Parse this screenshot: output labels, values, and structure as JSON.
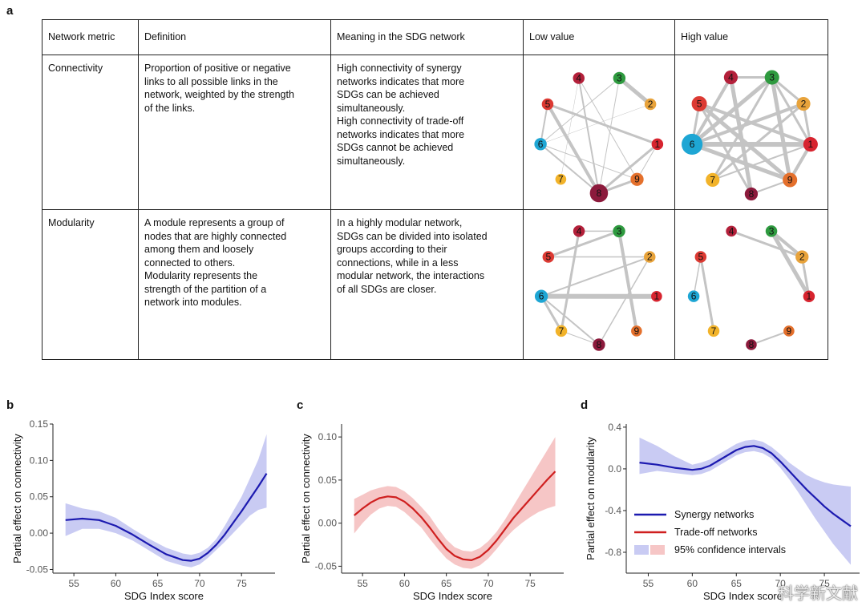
{
  "panel_a": {
    "letter": "a",
    "headers": [
      "Network metric",
      "Definition",
      "Meaning in the SDG network",
      "Low value",
      "High value"
    ],
    "rows": [
      {
        "metric": "Connectivity",
        "definition": "Proportion of positive or negative\nlinks to all possible links in the\nnetwork, weighted by the strength\nof the links.",
        "meaning": "High connectivity of synergy\nnetworks indicates that more\nSDGs can be achieved\nsimultaneously.\nHigh connectivity of trade-off\nnetworks indicates that more\nSDGs cannot be achieved\nsimultaneously."
      },
      {
        "metric": "Modularity",
        "definition": "A module represents a group of\nnodes that are highly connected\namong them and loosely\nconnected to others.\nModularity represents the\nstrength of the partition of a\nnetwork into modules.",
        "meaning": "In a highly modular network,\nSDGs can be divided into isolated\ngroups according to their\nconnections, while in a less\nmodular network, the interactions\nof all SDGs are closer."
      }
    ],
    "node_colors": {
      "1": "#d7242f",
      "2": "#e8a33b",
      "3": "#2e9a3f",
      "4": "#b3203a",
      "5": "#dc3a33",
      "6": "#1ea6d4",
      "7": "#f2b32a",
      "8": "#8c1a3c",
      "9": "#e4702c"
    },
    "networks": [
      {
        "id": "connectivity-low",
        "nodes": [
          {
            "id": "4",
            "size": 0.25
          },
          {
            "id": "3",
            "size": 0.3
          },
          {
            "id": "2",
            "size": 0.25
          },
          {
            "id": "5",
            "size": 0.25
          },
          {
            "id": "1",
            "size": 0.25
          },
          {
            "id": "6",
            "size": 0.3
          },
          {
            "id": "9",
            "size": 0.35
          },
          {
            "id": "7",
            "size": 0.2
          },
          {
            "id": "8",
            "size": 0.7
          }
        ],
        "edges": [
          {
            "a": "3",
            "b": "2",
            "w": 5
          },
          {
            "a": "5",
            "b": "1",
            "w": 3
          },
          {
            "a": "5",
            "b": "8",
            "w": 4
          },
          {
            "a": "1",
            "b": "8",
            "w": 3
          },
          {
            "a": "9",
            "b": "8",
            "w": 3
          },
          {
            "a": "9",
            "b": "1",
            "w": 1
          },
          {
            "a": "6",
            "b": "8",
            "w": 2
          },
          {
            "a": "6",
            "b": "5",
            "w": 2
          },
          {
            "a": "6",
            "b": "9",
            "w": 1
          },
          {
            "a": "4",
            "b": "8",
            "w": 2
          },
          {
            "a": "3",
            "b": "8",
            "w": 1
          },
          {
            "a": "6",
            "b": "3",
            "w": 1
          },
          {
            "a": "4",
            "b": "9",
            "w": 1
          },
          {
            "a": "2",
            "b": "6",
            "w": 0.5
          },
          {
            "a": "4",
            "b": "7",
            "w": 0.5
          }
        ]
      },
      {
        "id": "connectivity-high",
        "nodes": [
          {
            "id": "4",
            "size": 0.4
          },
          {
            "id": "3",
            "size": 0.45
          },
          {
            "id": "2",
            "size": 0.4
          },
          {
            "id": "5",
            "size": 0.5
          },
          {
            "id": "1",
            "size": 0.45
          },
          {
            "id": "6",
            "size": 0.9
          },
          {
            "id": "9",
            "size": 0.45
          },
          {
            "id": "7",
            "size": 0.4
          },
          {
            "id": "8",
            "size": 0.35
          }
        ],
        "edges": [
          {
            "a": "6",
            "b": "1",
            "w": 6
          },
          {
            "a": "6",
            "b": "3",
            "w": 5
          },
          {
            "a": "6",
            "b": "2",
            "w": 4
          },
          {
            "a": "6",
            "b": "9",
            "w": 5
          },
          {
            "a": "6",
            "b": "4",
            "w": 4
          },
          {
            "a": "6",
            "b": "5",
            "w": 3
          },
          {
            "a": "5",
            "b": "1",
            "w": 4
          },
          {
            "a": "5",
            "b": "9",
            "w": 5
          },
          {
            "a": "3",
            "b": "9",
            "w": 5
          },
          {
            "a": "3",
            "b": "7",
            "w": 3
          },
          {
            "a": "4",
            "b": "8",
            "w": 5
          },
          {
            "a": "2",
            "b": "7",
            "w": 3
          },
          {
            "a": "1",
            "b": "9",
            "w": 4
          },
          {
            "a": "3",
            "b": "1",
            "w": 3
          },
          {
            "a": "4",
            "b": "3",
            "w": 3
          },
          {
            "a": "2",
            "b": "1",
            "w": 3
          },
          {
            "a": "5",
            "b": "8",
            "w": 3
          },
          {
            "a": "7",
            "b": "1",
            "w": 2
          },
          {
            "a": "3",
            "b": "2",
            "w": 3
          },
          {
            "a": "8",
            "b": "9",
            "w": 2
          }
        ]
      },
      {
        "id": "modularity-low",
        "nodes": [
          {
            "id": "4",
            "size": 0.25
          },
          {
            "id": "3",
            "size": 0.3
          },
          {
            "id": "2",
            "size": 0.25
          },
          {
            "id": "5",
            "size": 0.25
          },
          {
            "id": "1",
            "size": 0.2
          },
          {
            "id": "6",
            "size": 0.35
          },
          {
            "id": "9",
            "size": 0.2
          },
          {
            "id": "7",
            "size": 0.25
          },
          {
            "id": "8",
            "size": 0.3
          }
        ],
        "edges": [
          {
            "a": "6",
            "b": "1",
            "w": 6
          },
          {
            "a": "3",
            "b": "9",
            "w": 4
          },
          {
            "a": "3",
            "b": "5",
            "w": 3
          },
          {
            "a": "4",
            "b": "7",
            "w": 3
          },
          {
            "a": "6",
            "b": "2",
            "w": 2
          },
          {
            "a": "6",
            "b": "7",
            "w": 3
          },
          {
            "a": "6",
            "b": "8",
            "w": 2
          },
          {
            "a": "2",
            "b": "8",
            "w": 1.5
          },
          {
            "a": "4",
            "b": "3",
            "w": 1.5
          },
          {
            "a": "5",
            "b": "2",
            "w": 1.5
          },
          {
            "a": "7",
            "b": "8",
            "w": 1
          }
        ]
      },
      {
        "id": "modularity-high",
        "nodes": [
          {
            "id": "4",
            "size": 0.2
          },
          {
            "id": "3",
            "size": 0.25
          },
          {
            "id": "2",
            "size": 0.35
          },
          {
            "id": "5",
            "size": 0.25
          },
          {
            "id": "1",
            "size": 0.25
          },
          {
            "id": "6",
            "size": 0.25
          },
          {
            "id": "9",
            "size": 0.2
          },
          {
            "id": "7",
            "size": 0.25
          },
          {
            "id": "8",
            "size": 0.2
          }
        ],
        "edges": [
          {
            "a": "3",
            "b": "1",
            "w": 5
          },
          {
            "a": "3",
            "b": "2",
            "w": 4
          },
          {
            "a": "4",
            "b": "2",
            "w": 3
          },
          {
            "a": "2",
            "b": "1",
            "w": 3
          },
          {
            "a": "5",
            "b": "7",
            "w": 3
          },
          {
            "a": "6",
            "b": "5",
            "w": 1.5
          },
          {
            "a": "8",
            "b": "9",
            "w": 2
          }
        ]
      }
    ]
  },
  "chart_data": [
    {
      "panel": "b",
      "type": "line",
      "ylabel": "Partial effect on connectivity",
      "xlabel": "SDG Index score",
      "xlim": [
        52.5,
        79
      ],
      "ylim": [
        -0.055,
        0.15
      ],
      "xticks": [
        55,
        60,
        65,
        70,
        75
      ],
      "yticks": [
        -0.05,
        0.0,
        0.05,
        0.1,
        0.15
      ],
      "ytick_labels": [
        "-0.05",
        "0.00",
        "0.05",
        "0.10",
        "0.15"
      ],
      "line_color": "#1c1ab0",
      "band_color": "#c9cbf3",
      "series": [
        {
          "x": [
            54,
            56,
            58,
            60,
            62,
            64,
            66,
            68,
            69,
            70,
            71,
            72,
            73,
            74,
            75,
            76,
            77,
            78
          ],
          "y": [
            0.018,
            0.02,
            0.018,
            0.01,
            -0.002,
            -0.016,
            -0.029,
            -0.037,
            -0.038,
            -0.035,
            -0.027,
            -0.016,
            -0.002,
            0.014,
            0.03,
            0.047,
            0.064,
            0.082
          ],
          "lower": [
            -0.004,
            0.006,
            0.006,
            0.0,
            -0.01,
            -0.024,
            -0.038,
            -0.045,
            -0.047,
            -0.043,
            -0.034,
            -0.023,
            -0.012,
            0.0,
            0.012,
            0.024,
            0.032,
            0.035
          ],
          "upper": [
            0.041,
            0.034,
            0.03,
            0.021,
            0.006,
            -0.008,
            -0.02,
            -0.028,
            -0.03,
            -0.027,
            -0.02,
            -0.008,
            0.01,
            0.03,
            0.05,
            0.075,
            0.101,
            0.136
          ]
        }
      ]
    },
    {
      "panel": "c",
      "type": "line",
      "ylabel": "Partial effect on connectivity",
      "xlabel": "SDG Index score",
      "xlim": [
        52.5,
        79
      ],
      "ylim": [
        -0.058,
        0.115
      ],
      "xticks": [
        55,
        60,
        65,
        70,
        75
      ],
      "yticks": [
        -0.05,
        0.0,
        0.05,
        0.1
      ],
      "ytick_labels": [
        "-0.05",
        "0.00",
        "0.05",
        "0.10"
      ],
      "line_color": "#cf1f1f",
      "band_color": "#f6c6c6",
      "series": [
        {
          "x": [
            54,
            55,
            56,
            57,
            58,
            59,
            60,
            61,
            62,
            63,
            64,
            65,
            66,
            67,
            68,
            69,
            70,
            71,
            72,
            73,
            74,
            75,
            76,
            77,
            78
          ],
          "y": [
            0.009,
            0.017,
            0.024,
            0.029,
            0.031,
            0.03,
            0.025,
            0.017,
            0.007,
            -0.005,
            -0.018,
            -0.03,
            -0.038,
            -0.042,
            -0.043,
            -0.039,
            -0.031,
            -0.02,
            -0.007,
            0.006,
            0.017,
            0.028,
            0.039,
            0.05,
            0.06
          ],
          "lower": [
            -0.012,
            0.0,
            0.01,
            0.017,
            0.02,
            0.019,
            0.013,
            0.004,
            -0.005,
            -0.018,
            -0.03,
            -0.041,
            -0.048,
            -0.052,
            -0.053,
            -0.049,
            -0.041,
            -0.03,
            -0.018,
            -0.008,
            0.0,
            0.007,
            0.013,
            0.017,
            0.02
          ],
          "upper": [
            0.028,
            0.033,
            0.038,
            0.041,
            0.043,
            0.042,
            0.037,
            0.029,
            0.019,
            0.008,
            -0.006,
            -0.019,
            -0.028,
            -0.032,
            -0.033,
            -0.029,
            -0.021,
            -0.01,
            0.004,
            0.02,
            0.036,
            0.052,
            0.068,
            0.084,
            0.1
          ]
        }
      ]
    },
    {
      "panel": "d",
      "type": "line",
      "ylabel": "Partial effect on modularity",
      "xlabel": "SDG Index score",
      "xlim": [
        52.5,
        79
      ],
      "ylim": [
        -1.0,
        0.43
      ],
      "xticks": [
        55,
        60,
        65,
        70,
        75
      ],
      "yticks": [
        -0.8,
        -0.4,
        0.0,
        0.4
      ],
      "ytick_labels": [
        "-0.8",
        "-0.4",
        "0.0",
        "0.4"
      ],
      "line_color": "#1c1ab0",
      "band_color": "#c9cbf3",
      "series": [
        {
          "x": [
            54,
            56,
            58,
            60,
            61,
            62,
            63,
            64,
            65,
            66,
            67,
            68,
            69,
            70,
            71,
            72,
            73,
            74,
            75,
            76,
            77,
            78
          ],
          "y": [
            0.06,
            0.04,
            0.01,
            -0.01,
            0.0,
            0.03,
            0.08,
            0.13,
            0.18,
            0.21,
            0.22,
            0.2,
            0.15,
            0.07,
            -0.02,
            -0.11,
            -0.2,
            -0.28,
            -0.36,
            -0.43,
            -0.49,
            -0.55
          ],
          "lower": [
            -0.05,
            -0.02,
            -0.04,
            -0.06,
            -0.05,
            -0.02,
            0.03,
            0.08,
            0.13,
            0.16,
            0.17,
            0.15,
            0.1,
            0.01,
            -0.1,
            -0.22,
            -0.35,
            -0.48,
            -0.6,
            -0.72,
            -0.82,
            -0.92
          ],
          "upper": [
            0.3,
            0.22,
            0.12,
            0.04,
            0.06,
            0.09,
            0.14,
            0.19,
            0.24,
            0.27,
            0.28,
            0.26,
            0.21,
            0.14,
            0.06,
            0.0,
            -0.06,
            -0.1,
            -0.13,
            -0.15,
            -0.16,
            -0.17
          ]
        }
      ],
      "legend": [
        {
          "label": "Synergy networks",
          "kind": "line",
          "color": "#1c1ab0"
        },
        {
          "label": "Trade-off networks",
          "kind": "line",
          "color": "#cf1f1f"
        },
        {
          "label": "95% confidence intervals",
          "kind": "band",
          "colors": [
            "#c9cbf3",
            "#f6c6c6"
          ]
        }
      ]
    }
  ],
  "watermark": "科学新文献"
}
